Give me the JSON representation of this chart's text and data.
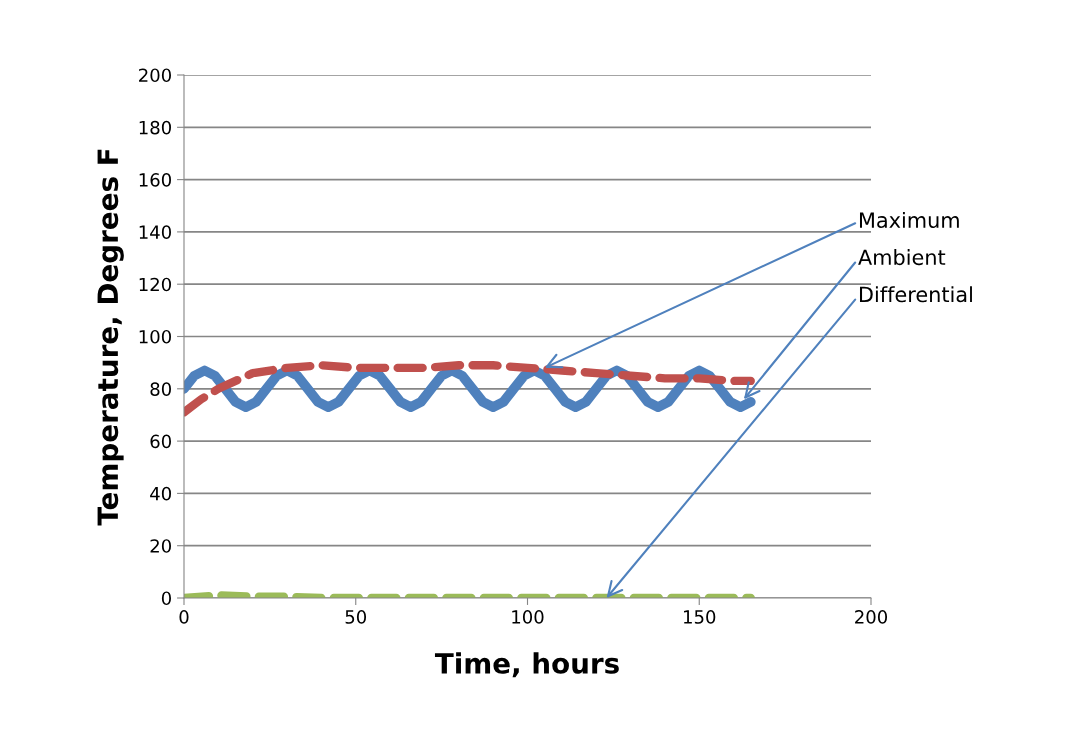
{
  "chart_data": {
    "type": "line",
    "xlabel": "Time, hours",
    "ylabel": "Temperature, Degrees F",
    "xlim": [
      0,
      200
    ],
    "xticks": [
      0,
      50,
      100,
      150,
      200
    ],
    "ylim": [
      0,
      200
    ],
    "yticks": [
      0,
      20,
      40,
      60,
      80,
      100,
      120,
      140,
      160,
      180,
      200
    ],
    "grid": "y",
    "legend": false,
    "marker": "none",
    "series": [
      {
        "color": "#4f81bd",
        "line_style": "solid",
        "x": [
          0,
          3,
          6,
          9,
          12,
          15,
          18,
          21,
          24,
          27,
          30,
          33,
          36,
          39,
          42,
          45,
          48,
          51,
          54,
          57,
          60,
          63,
          66,
          69,
          72,
          75,
          78,
          81,
          84,
          87,
          90,
          93,
          96,
          99,
          102,
          105,
          108,
          111,
          114,
          117,
          120,
          123,
          126,
          129,
          132,
          135,
          138,
          141,
          144,
          147,
          150,
          153,
          156,
          159,
          162,
          165
        ],
        "values": [
          80,
          85,
          87,
          85,
          80,
          75,
          73,
          75,
          80,
          85,
          87,
          85,
          80,
          75,
          73,
          75,
          80,
          85,
          87,
          85,
          80,
          75,
          73,
          75,
          80,
          85,
          87,
          85,
          80,
          75,
          73,
          75,
          80,
          85,
          87,
          85,
          80,
          75,
          73,
          75,
          80,
          85,
          87,
          85,
          80,
          75,
          73,
          75,
          80,
          85,
          87,
          85,
          80,
          75,
          73,
          75
        ]
      },
      {
        "color": "#c0504d",
        "line_style": "dashed",
        "x": [
          0,
          5,
          10,
          20,
          30,
          40,
          50,
          60,
          70,
          80,
          90,
          100,
          110,
          120,
          130,
          140,
          150,
          160,
          165
        ],
        "values": [
          71,
          76,
          80,
          86,
          88,
          89,
          88,
          88,
          88,
          89,
          89,
          88,
          87,
          86,
          85,
          84,
          84,
          83,
          83
        ]
      },
      {
        "color": "#9bbb59",
        "line_style": "dashed",
        "x": [
          0,
          10,
          20,
          30,
          40,
          50,
          60,
          70,
          80,
          90,
          100,
          110,
          120,
          130,
          140,
          150,
          160,
          165
        ],
        "values": [
          0,
          1,
          0.5,
          0.5,
          0,
          0,
          0,
          0,
          0,
          0,
          0,
          0,
          0,
          0,
          0,
          0,
          0,
          0
        ]
      }
    ],
    "annotations": [
      {
        "text": "Maximum",
        "x": 105,
        "y": 88
      },
      {
        "text": "Ambient",
        "x": 163,
        "y": 76
      },
      {
        "text": "Differential",
        "x": 123,
        "y": 0
      }
    ]
  }
}
